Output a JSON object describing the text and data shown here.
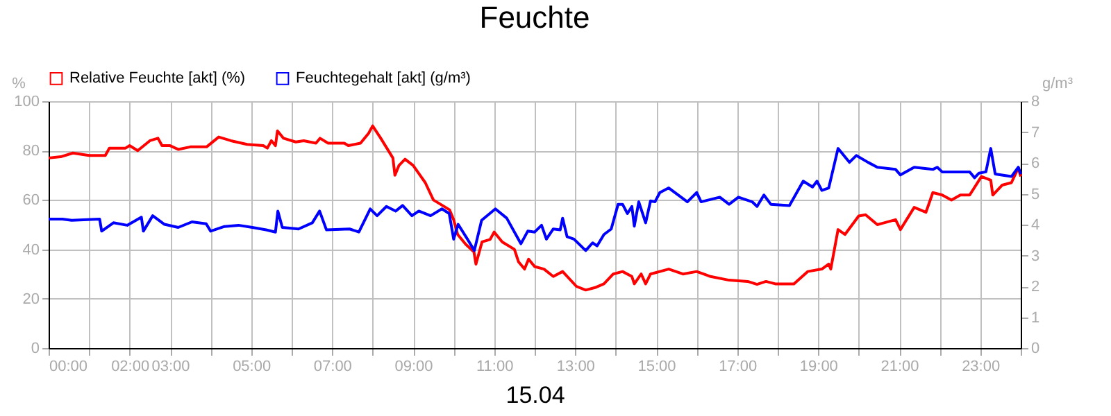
{
  "chart_data": {
    "type": "line",
    "title": "Feuchte",
    "xlabel": "15.04",
    "ylabel": "%",
    "y2label": "g/m³",
    "legend": "top left",
    "grid": true,
    "xlim": [
      0,
      24
    ],
    "xticks": [
      {
        "value": 0,
        "label": "00:00"
      },
      {
        "value": 1,
        "label": null
      },
      {
        "value": 2,
        "label": "02:00"
      },
      {
        "value": 3,
        "label": "03:00"
      },
      {
        "value": 4,
        "label": null
      },
      {
        "value": 5,
        "label": "05:00"
      },
      {
        "value": 6,
        "label": null
      },
      {
        "value": 7,
        "label": "07:00"
      },
      {
        "value": 8,
        "label": null
      },
      {
        "value": 9,
        "label": "09:00"
      },
      {
        "value": 10,
        "label": null
      },
      {
        "value": 11,
        "label": "11:00"
      },
      {
        "value": 12,
        "label": null
      },
      {
        "value": 13,
        "label": "13:00"
      },
      {
        "value": 14,
        "label": null
      },
      {
        "value": 15,
        "label": "15:00"
      },
      {
        "value": 16,
        "label": null
      },
      {
        "value": 17,
        "label": "17:00"
      },
      {
        "value": 18,
        "label": null
      },
      {
        "value": 19,
        "label": "19:00"
      },
      {
        "value": 20,
        "label": null
      },
      {
        "value": 21,
        "label": "21:00"
      },
      {
        "value": 22,
        "label": null
      },
      {
        "value": 23,
        "label": "23:00"
      },
      {
        "value": 24,
        "label": null
      }
    ],
    "ylim": [
      0,
      100
    ],
    "yticks": [
      0,
      20,
      40,
      60,
      80,
      100
    ],
    "y2lim": [
      0,
      8
    ],
    "y2ticks": [
      0,
      1,
      2,
      3,
      4,
      5,
      6,
      7,
      8
    ],
    "series": [
      {
        "name": "Relative Feuchte [akt] (%)",
        "color": "#ff0000",
        "x": [
          0,
          0.3,
          0.6,
          1.0,
          1.4,
          1.5,
          1.9,
          2.0,
          2.2,
          2.5,
          2.7,
          2.8,
          3.0,
          3.2,
          3.5,
          3.9,
          4.2,
          4.5,
          4.9,
          5.3,
          5.4,
          5.5,
          5.6,
          5.65,
          5.8,
          6.1,
          6.3,
          6.6,
          6.7,
          6.9,
          7.3,
          7.4,
          7.7,
          7.9,
          8.0,
          8.2,
          8.5,
          8.55,
          8.65,
          8.8,
          9.0,
          9.3,
          9.5,
          9.9,
          10.0,
          10.1,
          10.3,
          10.5,
          10.55,
          10.7,
          10.9,
          11.0,
          11.2,
          11.5,
          11.6,
          11.75,
          11.85,
          12.0,
          12.23,
          12.46,
          12.69,
          13.03,
          13.26,
          13.49,
          13.71,
          13.94,
          14.17,
          14.4,
          14.46,
          14.63,
          14.74,
          14.86,
          15.31,
          15.66,
          16.0,
          16.34,
          16.8,
          17.26,
          17.49,
          17.71,
          17.94,
          18.4,
          18.74,
          19.09,
          19.26,
          19.31,
          19.49,
          19.66,
          20.0,
          20.17,
          20.46,
          20.69,
          20.91,
          21.03,
          21.37,
          21.66,
          21.83,
          22.06,
          22.29,
          22.51,
          22.74,
          23.03,
          23.26,
          23.31,
          23.54,
          23.77,
          23.94,
          24.0
        ],
        "values": [
          77,
          77.5,
          79,
          78,
          78,
          81,
          81,
          82,
          80,
          84,
          85,
          82,
          82,
          80.5,
          81.5,
          81.5,
          85.5,
          84,
          82.5,
          82,
          81,
          84,
          82,
          88,
          85,
          83.5,
          84,
          83,
          85,
          83,
          83,
          82,
          83,
          87,
          90,
          85,
          77,
          70,
          74,
          76.5,
          74,
          67,
          60,
          56,
          52,
          46,
          42,
          39,
          34,
          43,
          44,
          47,
          43,
          40,
          35,
          32,
          36,
          33,
          32,
          29,
          31,
          25,
          23.5,
          24.5,
          26,
          30,
          31,
          29,
          26,
          30,
          26,
          30,
          32,
          30,
          31,
          29,
          27.5,
          27,
          25.8,
          27,
          26,
          26,
          31,
          32,
          34,
          32,
          48,
          46,
          53.5,
          54,
          50,
          51,
          52,
          48,
          57,
          55,
          63,
          62,
          60,
          62,
          62,
          69.5,
          68,
          62,
          66,
          67,
          73,
          69.5
        ]
      },
      {
        "name": "Feuchtegehalt [akt] (g/m³)",
        "color": "#0000ff",
        "axis": "y2",
        "x": [
          0,
          0.34,
          0.57,
          1.26,
          1.31,
          1.6,
          1.94,
          2.29,
          2.34,
          2.57,
          2.86,
          3.2,
          3.54,
          3.89,
          4.0,
          4.34,
          4.69,
          5.03,
          5.37,
          5.6,
          5.66,
          5.77,
          6.17,
          6.51,
          6.69,
          6.86,
          7.43,
          7.66,
          7.94,
          8.11,
          8.34,
          8.57,
          8.74,
          8.97,
          9.14,
          9.43,
          9.71,
          9.89,
          10.0,
          10.11,
          10.34,
          10.51,
          10.69,
          11.03,
          11.31,
          11.66,
          11.83,
          12.0,
          12.17,
          12.29,
          12.46,
          12.63,
          12.69,
          12.8,
          12.97,
          13.26,
          13.43,
          13.54,
          13.71,
          13.89,
          14.06,
          14.17,
          14.29,
          14.4,
          14.46,
          14.57,
          14.74,
          14.86,
          14.97,
          15.09,
          15.31,
          15.77,
          16.0,
          16.11,
          16.57,
          16.8,
          17.03,
          17.37,
          17.49,
          17.66,
          17.83,
          18.29,
          18.63,
          18.86,
          18.97,
          19.09,
          19.26,
          19.49,
          19.77,
          19.94,
          20.23,
          20.46,
          20.91,
          21.03,
          21.37,
          21.83,
          21.94,
          22.06,
          22.74,
          22.86,
          22.97,
          23.14,
          23.26,
          23.37,
          23.77,
          23.94,
          24.0
        ],
        "values": [
          4.18,
          4.18,
          4.14,
          4.18,
          3.79,
          4.06,
          3.98,
          4.24,
          3.79,
          4.29,
          4.01,
          3.91,
          4.09,
          4.03,
          3.79,
          3.94,
          3.98,
          3.91,
          3.83,
          3.76,
          4.44,
          3.91,
          3.86,
          4.06,
          4.44,
          3.83,
          3.86,
          3.76,
          4.51,
          4.29,
          4.59,
          4.44,
          4.62,
          4.29,
          4.44,
          4.29,
          4.51,
          4.36,
          3.53,
          4.01,
          3.53,
          3.16,
          4.14,
          4.51,
          4.21,
          3.38,
          3.79,
          3.76,
          3.98,
          3.53,
          3.86,
          3.83,
          4.21,
          3.61,
          3.53,
          3.16,
          3.41,
          3.31,
          3.68,
          3.86,
          4.66,
          4.66,
          4.36,
          4.59,
          3.95,
          4.74,
          4.06,
          4.77,
          4.74,
          5.04,
          5.19,
          4.74,
          5.04,
          4.74,
          4.89,
          4.66,
          4.89,
          4.74,
          4.59,
          4.96,
          4.66,
          4.62,
          5.41,
          5.22,
          5.41,
          5.11,
          5.19,
          6.47,
          6.02,
          6.24,
          6.02,
          5.86,
          5.79,
          5.61,
          5.86,
          5.79,
          5.86,
          5.71,
          5.71,
          5.52,
          5.67,
          5.71,
          6.47,
          5.64,
          5.56,
          5.86,
          5.64
        ]
      }
    ]
  }
}
